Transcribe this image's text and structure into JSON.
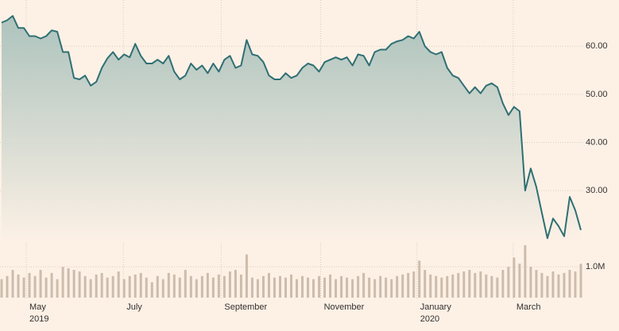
{
  "chart_data": [
    {
      "type": "area",
      "color": "#2f6f73",
      "fill": "#a9c1bb",
      "grid": true,
      "xlim": [
        0,
        104
      ],
      "xticks": [
        {
          "value": 4.43,
          "label": "May",
          "year": "2019"
        },
        {
          "value": 21.86,
          "label": "July"
        },
        {
          "value": 39.43,
          "label": "September"
        },
        {
          "value": 57.29,
          "label": "November"
        },
        {
          "value": 74.57,
          "label": "January",
          "year": "2020"
        },
        {
          "value": 91.86,
          "label": "March"
        }
      ],
      "ylim": [
        19.3,
        69.6
      ],
      "yticks": [
        {
          "value": 30,
          "label": "30.00"
        },
        {
          "value": 40,
          "label": "40.00"
        },
        {
          "value": 50,
          "label": "50.00"
        },
        {
          "value": 60,
          "label": "60.00"
        }
      ],
      "values": [
        64.9,
        65.4,
        66.3,
        63.8,
        63.8,
        62.1,
        62.1,
        61.6,
        62.1,
        63.3,
        63.0,
        58.8,
        58.8,
        53.4,
        53.1,
        53.9,
        51.8,
        52.6,
        55.5,
        57.5,
        58.8,
        57.2,
        58.3,
        57.7,
        60.5,
        58.0,
        56.4,
        56.4,
        57.2,
        56.4,
        58.0,
        54.7,
        53.1,
        53.9,
        56.4,
        55.1,
        56.0,
        54.4,
        56.4,
        54.7,
        57.2,
        58.0,
        55.5,
        56.0,
        61.3,
        58.3,
        58.0,
        56.7,
        53.9,
        53.1,
        53.1,
        54.4,
        53.4,
        53.9,
        55.5,
        56.4,
        56.0,
        54.7,
        56.7,
        57.2,
        57.7,
        57.2,
        57.7,
        56.0,
        58.3,
        58.0,
        56.0,
        58.8,
        59.3,
        59.3,
        60.5,
        61.0,
        61.3,
        62.1,
        61.6,
        63.0,
        60.0,
        58.8,
        58.3,
        58.8,
        55.5,
        53.9,
        53.4,
        51.8,
        50.2,
        51.5,
        50.2,
        51.8,
        52.3,
        51.5,
        48.1,
        45.7,
        47.4,
        46.5,
        30.0,
        34.6,
        30.8,
        25.4,
        20.1,
        24.2,
        22.6,
        20.5,
        28.7,
        25.9,
        21.8
      ]
    },
    {
      "type": "bar",
      "color": "#cdbcac",
      "xlim": [
        0,
        104
      ],
      "ylim": [
        0,
        1800000
      ],
      "yticks": [
        {
          "value": 1000000,
          "label": "1.0M"
        }
      ],
      "values": [
        600000,
        700000,
        900000,
        750000,
        650000,
        800000,
        700000,
        900000,
        650000,
        800000,
        600000,
        1000000,
        950000,
        900000,
        850000,
        700000,
        600000,
        750000,
        800000,
        650000,
        700000,
        850000,
        600000,
        700000,
        750000,
        800000,
        650000,
        500000,
        700000,
        600000,
        800000,
        750000,
        650000,
        900000,
        700000,
        600000,
        700000,
        800000,
        650000,
        750000,
        700000,
        850000,
        900000,
        750000,
        1400000,
        650000,
        600000,
        700000,
        800000,
        650000,
        700000,
        650000,
        750000,
        600000,
        700000,
        650000,
        600000,
        700000,
        650000,
        750000,
        600000,
        700000,
        650000,
        600000,
        700000,
        800000,
        650000,
        600000,
        700000,
        650000,
        600000,
        700000,
        750000,
        800000,
        850000,
        1200000,
        900000,
        750000,
        700000,
        650000,
        700000,
        750000,
        800000,
        850000,
        900000,
        800000,
        850000,
        750000,
        700000,
        650000,
        900000,
        1000000,
        1300000,
        1100000,
        1700000,
        1000000,
        900000,
        800000,
        700000,
        850000,
        750000,
        800000,
        900000,
        850000,
        1100000
      ]
    }
  ]
}
